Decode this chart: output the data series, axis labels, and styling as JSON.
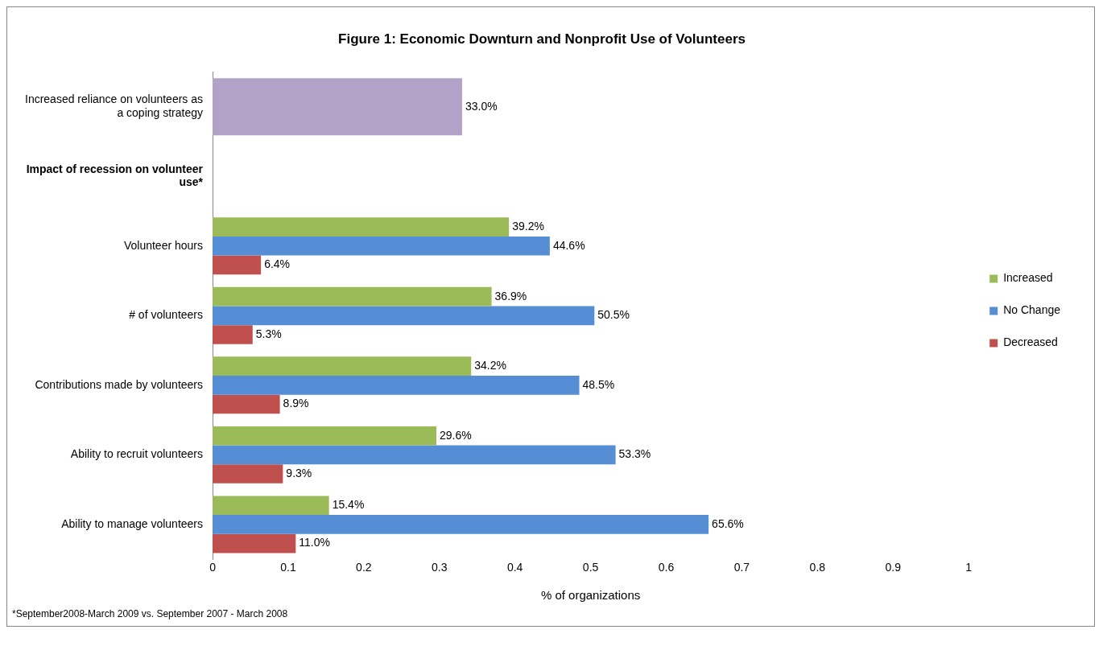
{
  "chart_data": {
    "type": "bar",
    "orientation": "horizontal",
    "title": "Figure 1: Economic Downturn and Nonprofit Use of Volunteers",
    "xlabel": "% of organizations",
    "categories": [
      "Increased reliance on volunteers as a coping strategy",
      "Impact of recession on volunteer use*",
      "Volunteer hours",
      "# of volunteers",
      "Contributions made by volunteers",
      "Ability to recruit volunteers",
      "Ability to manage volunteers"
    ],
    "series": [
      {
        "name": "Increased",
        "color": "#9bbb59",
        "values": [
          null,
          null,
          0.392,
          0.369,
          0.342,
          0.296,
          0.154
        ],
        "value_labels": [
          null,
          null,
          "39.2%",
          "36.9%",
          "34.2%",
          "29.6%",
          "15.4%"
        ]
      },
      {
        "name": "No Change",
        "color": "#558ed5",
        "values": [
          null,
          null,
          0.446,
          0.505,
          0.485,
          0.533,
          0.656
        ],
        "value_labels": [
          null,
          null,
          "44.6%",
          "50.5%",
          "48.5%",
          "53.3%",
          "65.6%"
        ]
      },
      {
        "name": "Decreased",
        "color": "#c0504d",
        "values": [
          null,
          null,
          0.064,
          0.053,
          0.089,
          0.093,
          0.11
        ],
        "value_labels": [
          null,
          null,
          "6.4%",
          "5.3%",
          "8.9%",
          "9.3%",
          "11.0%"
        ]
      },
      {
        "color": "#b3a2c7",
        "values": [
          0.33,
          null,
          null,
          null,
          null,
          null,
          null
        ],
        "value_labels": [
          "33.0%",
          null,
          null,
          null,
          null,
          null,
          null
        ]
      }
    ],
    "xlim": [
      0,
      1
    ],
    "xticks": [
      0,
      0.1,
      0.2,
      0.3,
      0.4,
      0.5,
      0.6,
      0.7,
      0.8,
      0.9,
      1
    ],
    "grid": false,
    "legend": "right",
    "annotations": [
      "*September2008-March 2009 vs. September 2007 - March 2008"
    ]
  }
}
